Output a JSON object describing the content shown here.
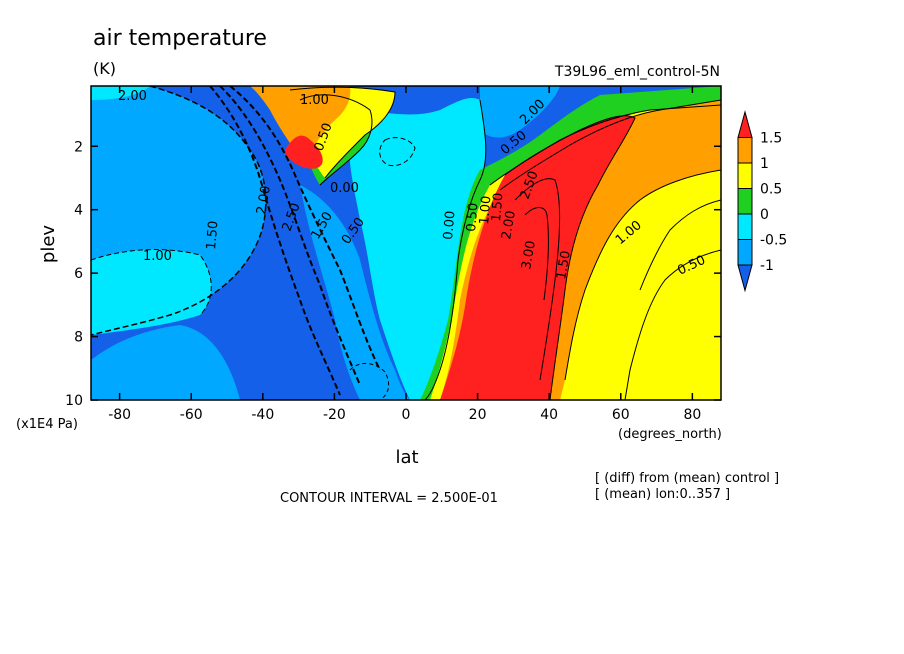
{
  "chart_data": {
    "type": "contour",
    "title": "air temperature",
    "units": "(K)",
    "dataset_label": "T39L96_eml_control-5N",
    "xlabel": "lat",
    "xunits": "(degrees_north)",
    "ylabel": "plev",
    "yunits": "(x1E4 Pa)",
    "x_ticks": [
      "-80",
      "-60",
      "-40",
      "-20",
      "0",
      "20",
      "40",
      "60",
      "80"
    ],
    "x_tick_values": [
      -80,
      -60,
      -40,
      -20,
      0,
      20,
      40,
      60,
      80
    ],
    "y_ticks": [
      "2",
      "4",
      "6",
      "8",
      "10"
    ],
    "y_tick_values": [
      2,
      4,
      6,
      8,
      10
    ],
    "xlim": [
      -88,
      88
    ],
    "ylim": [
      10,
      0.1
    ],
    "contour_interval_text": "CONTOUR INTERVAL = 2.500E-01",
    "notes": [
      "[ (diff) from (mean) control ]",
      "[ (mean) lon:0..357 ]"
    ],
    "colorbar": {
      "labels": [
        "1.5",
        "1",
        "0.5",
        "0",
        "-0.5",
        "-1"
      ],
      "levels": [
        1.5,
        1,
        0.5,
        0,
        -0.5,
        -1
      ],
      "bands": [
        {
          "range": "> 1.5",
          "color": "#ff2020"
        },
        {
          "range": "1 to 1.5",
          "color": "#ffa000"
        },
        {
          "range": "0.5 to 1",
          "color": "#ffff00"
        },
        {
          "range": "0 to 0.5",
          "color": "#20d020"
        },
        {
          "range": "-0.5 to 0",
          "color": "#00e8ff"
        },
        {
          "range": "-1 to -0.5",
          "color": "#00a8ff"
        },
        {
          "range": "< -1",
          "color": "#1560e8"
        }
      ]
    },
    "contour_labels": [
      "2.00",
      "1.00",
      "0.50",
      "0.00",
      "1.50",
      "2.00",
      "2.50",
      "1.50",
      "0.50",
      "1.00",
      "2.00",
      "0.00",
      "0.50",
      "1.00",
      "1.50",
      "2.00",
      "2.50",
      "3.00",
      "1.50",
      "1.00",
      "0.50",
      "0.50"
    ]
  }
}
